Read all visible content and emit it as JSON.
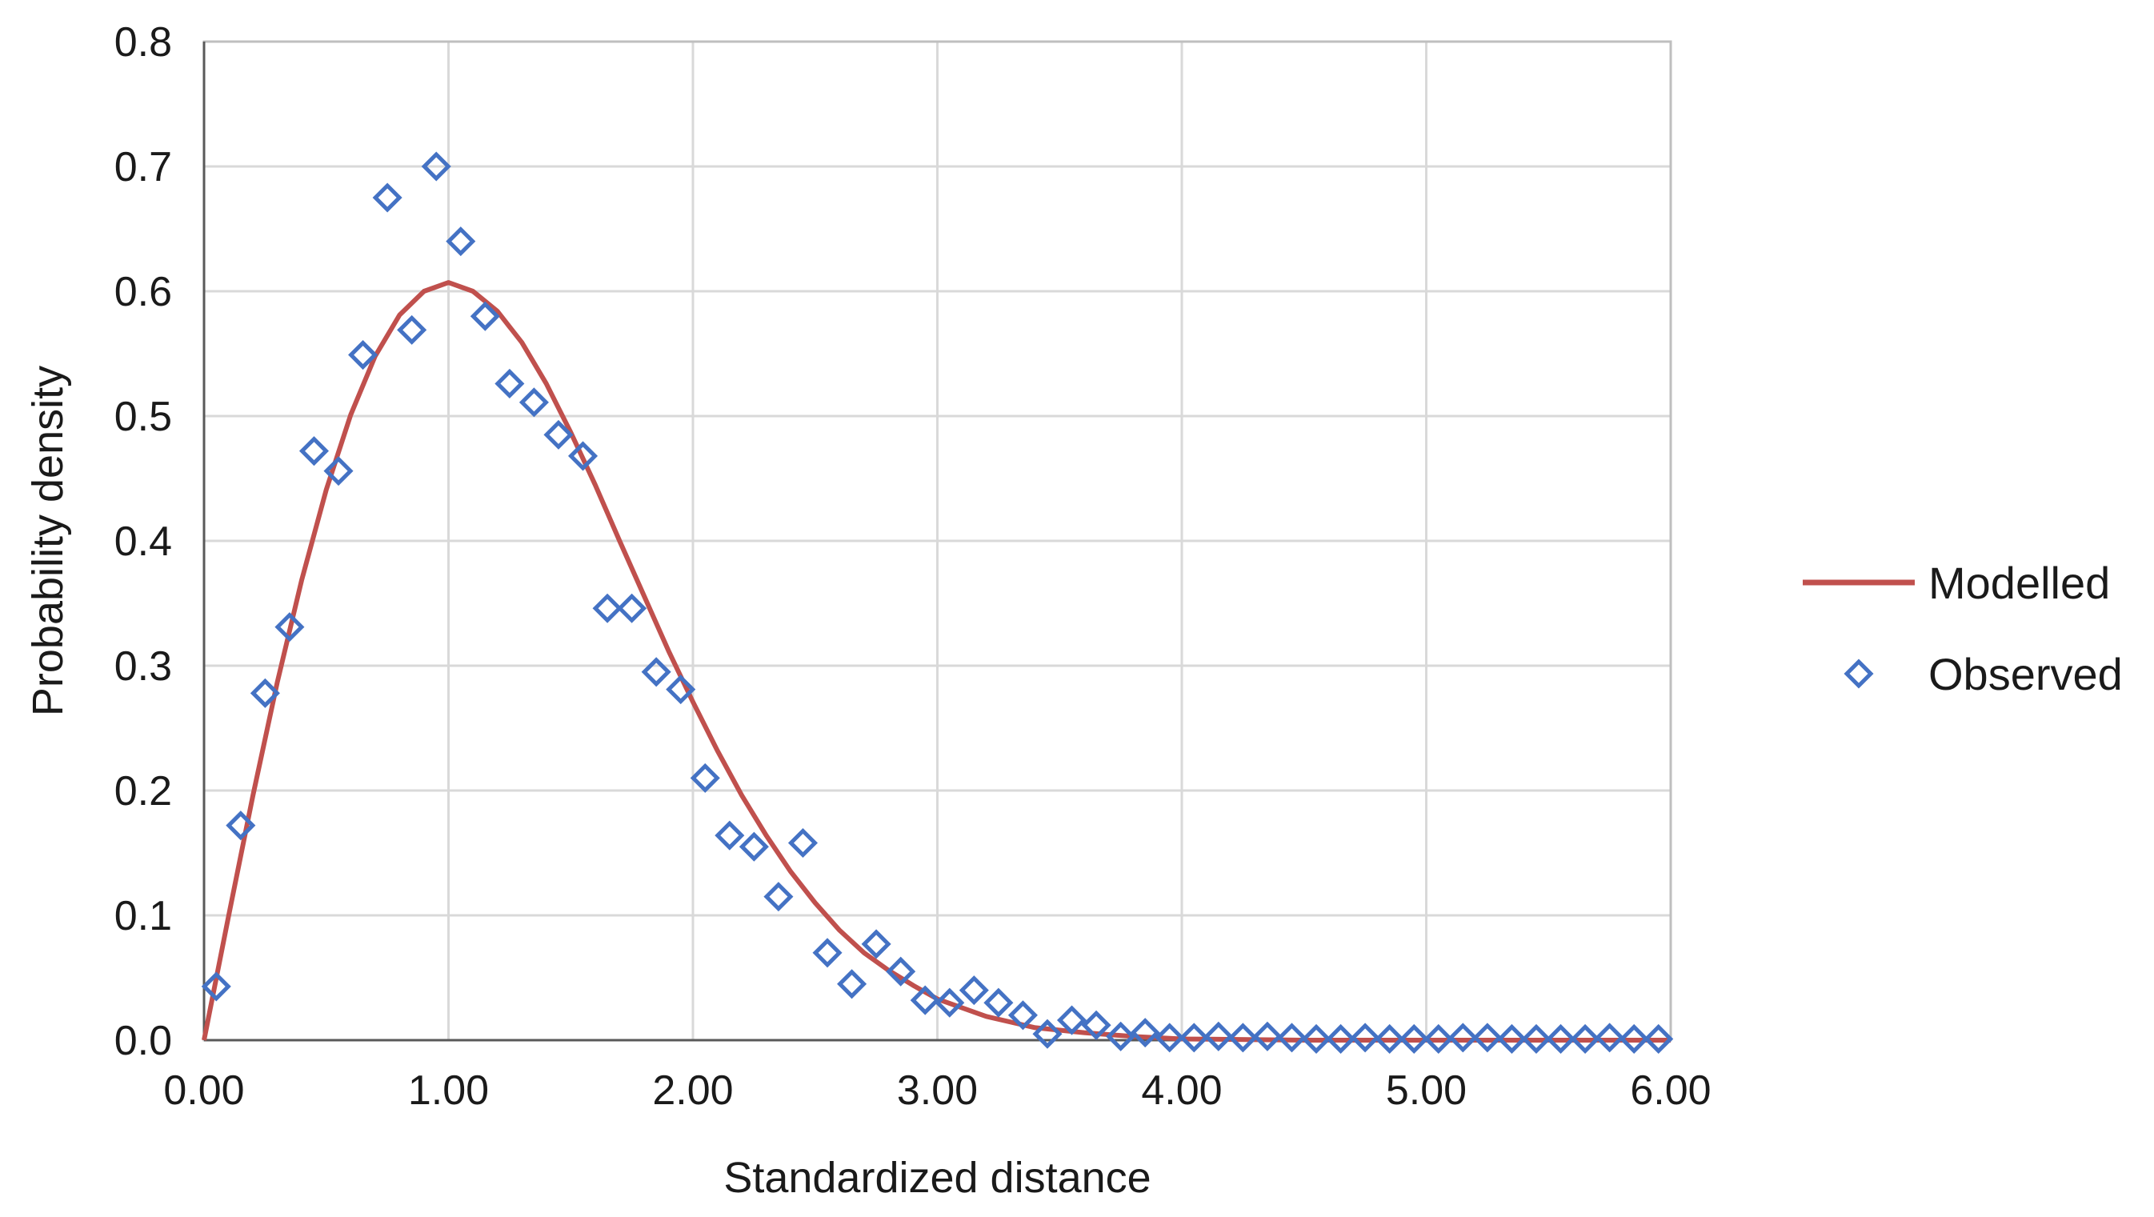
{
  "chart_data": {
    "type": "scatter",
    "title": "",
    "xlabel": "Standardized distance",
    "ylabel": "Probability density",
    "xlim": [
      0,
      6
    ],
    "ylim": [
      0,
      0.8
    ],
    "x_ticks": [
      "0.00",
      "1.00",
      "2.00",
      "3.00",
      "4.00",
      "5.00",
      "6.00"
    ],
    "y_ticks": [
      "0.0",
      "0.1",
      "0.2",
      "0.3",
      "0.4",
      "0.5",
      "0.6",
      "0.7",
      "0.8"
    ],
    "grid": true,
    "legend_position": "right",
    "series": [
      {
        "name": "Modelled",
        "kind": "line",
        "color": "#c0504d",
        "x": [
          0,
          0.1,
          0.2,
          0.3,
          0.4,
          0.5,
          0.6,
          0.7,
          0.8,
          0.9,
          1.0,
          1.1,
          1.2,
          1.3,
          1.4,
          1.5,
          1.6,
          1.7,
          1.8,
          1.9,
          2.0,
          2.1,
          2.2,
          2.3,
          2.4,
          2.5,
          2.6,
          2.7,
          2.8,
          2.9,
          3.0,
          3.2,
          3.4,
          3.6,
          3.8,
          4.0,
          4.5,
          5.0,
          5.5,
          6.0
        ],
        "y": [
          0.0,
          0.099,
          0.196,
          0.287,
          0.369,
          0.441,
          0.501,
          0.548,
          0.581,
          0.6,
          0.607,
          0.6,
          0.584,
          0.559,
          0.526,
          0.487,
          0.445,
          0.4,
          0.356,
          0.312,
          0.271,
          0.232,
          0.196,
          0.164,
          0.135,
          0.11,
          0.088,
          0.07,
          0.056,
          0.044,
          0.033,
          0.019,
          0.01,
          0.006,
          0.003,
          0.001,
          0.0,
          0.0,
          0.0,
          0.0
        ]
      },
      {
        "name": "Observed",
        "kind": "scatter",
        "color": "#4472c4",
        "x": [
          0.05,
          0.15,
          0.25,
          0.35,
          0.45,
          0.55,
          0.65,
          0.75,
          0.85,
          0.95,
          1.05,
          1.15,
          1.25,
          1.35,
          1.45,
          1.55,
          1.65,
          1.75,
          1.85,
          1.95,
          2.05,
          2.15,
          2.25,
          2.35,
          2.45,
          2.55,
          2.65,
          2.75,
          2.85,
          2.95,
          3.05,
          3.15,
          3.25,
          3.35,
          3.45,
          3.55,
          3.65,
          3.75,
          3.85,
          3.95,
          4.05,
          4.15,
          4.25,
          4.35,
          4.45,
          4.55,
          4.65,
          4.75,
          4.85,
          4.95,
          5.05,
          5.15,
          5.25,
          5.35,
          5.45,
          5.55,
          5.65,
          5.75,
          5.85,
          5.95
        ],
        "y": [
          0.043,
          0.172,
          0.278,
          0.331,
          0.472,
          0.456,
          0.549,
          0.675,
          0.569,
          0.7,
          0.64,
          0.58,
          0.526,
          0.511,
          0.485,
          0.468,
          0.346,
          0.346,
          0.295,
          0.281,
          0.21,
          0.164,
          0.155,
          0.115,
          0.158,
          0.07,
          0.045,
          0.077,
          0.055,
          0.032,
          0.03,
          0.04,
          0.03,
          0.02,
          0.005,
          0.016,
          0.012,
          0.003,
          0.006,
          0.002,
          0.002,
          0.003,
          0.002,
          0.003,
          0.002,
          0.001,
          0.001,
          0.002,
          0.001,
          0.001,
          0.001,
          0.002,
          0.002,
          0.001,
          0.001,
          0.001,
          0.001,
          0.002,
          0.001,
          0.001
        ]
      }
    ]
  }
}
